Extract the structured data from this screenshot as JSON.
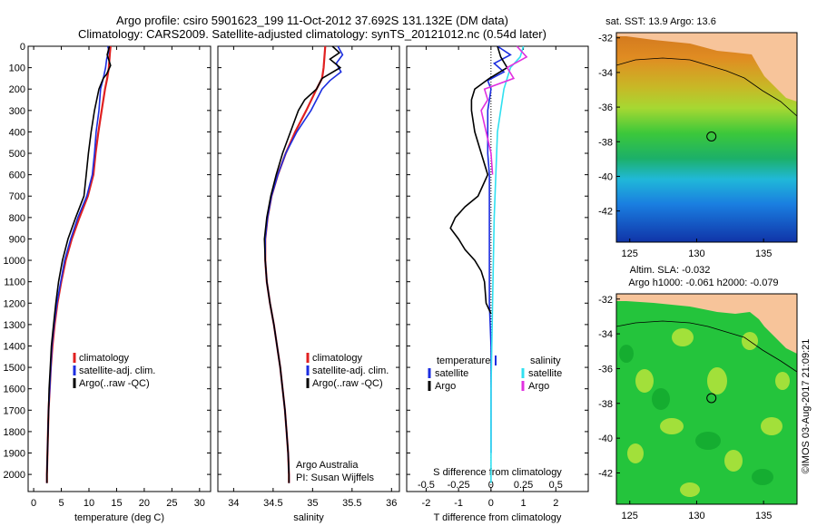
{
  "header": {
    "line1": "Argo profile: csiro 5901623_199 11-Oct-2012 37.692S 131.132E (DM data)",
    "line2": "Climatology: CARS2009. Satellite-adjusted climatology: synTS_20121012.nc (0.54d later)"
  },
  "colors": {
    "climatology": "#e02020",
    "satellite": "#1c2ee0",
    "argo": "#000000",
    "sal_satellite": "#30e0f0",
    "sal_argo": "#e030e0",
    "land": "#f7c49a"
  },
  "depth_axis": {
    "ylim": [
      0,
      2080
    ],
    "ticks": [
      0,
      100,
      200,
      300,
      400,
      500,
      600,
      700,
      800,
      900,
      1000,
      1100,
      1200,
      1300,
      1400,
      1500,
      1600,
      1700,
      1800,
      1900,
      2000
    ]
  },
  "chart_data": [
    {
      "type": "line",
      "panel": "temperature",
      "xlabel": "temperature (deg C)",
      "xlim": [
        -1,
        32
      ],
      "xticks": [
        0,
        5,
        10,
        15,
        20,
        25,
        30
      ],
      "legend": [
        "climatology",
        "satellite-adj. clim.",
        "Argo(..raw -QC)"
      ],
      "legend_placement": "center",
      "series": [
        {
          "name": "climatology",
          "color_key": "climatology",
          "depth": [
            0,
            30,
            100,
            150,
            200,
            300,
            400,
            500,
            600,
            700,
            800,
            900,
            1000,
            1100,
            1200,
            1300,
            1400,
            1500,
            1600,
            1700,
            1800,
            1900,
            2000,
            2040
          ],
          "values": [
            13.9,
            13.8,
            13.6,
            13.3,
            12.9,
            12.3,
            11.7,
            11.2,
            10.8,
            9.8,
            8.3,
            6.9,
            5.8,
            5.0,
            4.3,
            3.8,
            3.4,
            3.1,
            2.9,
            2.7,
            2.6,
            2.5,
            2.4,
            2.4
          ]
        },
        {
          "name": "satellite-adj. clim.",
          "color_key": "satellite",
          "depth": [
            0,
            20,
            60,
            100,
            150,
            200,
            300,
            400,
            500,
            600,
            700,
            800,
            900,
            1000,
            1100,
            1200,
            1300,
            1400,
            1500,
            1600,
            1700,
            1800,
            1900,
            2000,
            2040
          ],
          "values": [
            13.4,
            13.6,
            13.2,
            13.0,
            12.6,
            12.1,
            11.8,
            11.3,
            11.0,
            10.6,
            9.6,
            8.0,
            6.7,
            5.6,
            4.9,
            4.2,
            3.7,
            3.3,
            3.1,
            2.9,
            2.7,
            2.6,
            2.5,
            2.4,
            2.4
          ]
        },
        {
          "name": "Argo(..raw -QC)",
          "color_key": "argo",
          "depth": [
            0,
            40,
            90,
            130,
            150,
            200,
            300,
            400,
            500,
            600,
            700,
            800,
            900,
            1000,
            1100,
            1200,
            1300,
            1400,
            1500,
            1600,
            1700,
            1800,
            1900,
            2000,
            2040
          ],
          "values": [
            13.7,
            13.3,
            13.9,
            13.2,
            12.6,
            11.8,
            11.0,
            10.4,
            9.9,
            9.5,
            9.1,
            7.6,
            6.2,
            5.2,
            4.5,
            4.0,
            3.6,
            3.2,
            3.0,
            2.8,
            2.7,
            2.6,
            2.5,
            2.4,
            2.4
          ]
        }
      ]
    },
    {
      "type": "line",
      "panel": "salinity",
      "xlabel": "salinity",
      "xlim": [
        33.8,
        36.1
      ],
      "xticks": [
        34,
        34.5,
        35,
        35.5,
        36
      ],
      "legend": [
        "climatology",
        "satellite-adj. clim.",
        "Argo(..raw -QC)"
      ],
      "legend_placement": "lower-right",
      "annotation": [
        "Argo Australia",
        "PI: Susan Wijffels"
      ],
      "series": [
        {
          "name": "climatology",
          "color_key": "climatology",
          "depth": [
            0,
            50,
            100,
            150,
            200,
            300,
            400,
            500,
            600,
            700,
            800,
            900,
            1000,
            1100,
            1200,
            1300,
            1400,
            1500,
            1600,
            1700,
            1800,
            1900,
            2000,
            2040
          ],
          "values": [
            35.16,
            35.15,
            35.14,
            35.12,
            35.05,
            34.92,
            34.78,
            34.66,
            34.56,
            34.48,
            34.43,
            34.4,
            34.4,
            34.42,
            34.46,
            34.51,
            34.55,
            34.59,
            34.62,
            34.65,
            34.67,
            34.69,
            34.7,
            34.7
          ]
        },
        {
          "name": "satellite-adj. clim.",
          "color_key": "satellite",
          "depth": [
            0,
            40,
            80,
            120,
            160,
            200,
            300,
            400,
            500,
            600,
            700,
            800,
            900,
            1000,
            1100,
            1200,
            1300,
            1400,
            1500,
            1600,
            1700,
            1800,
            1900,
            2000,
            2040
          ],
          "values": [
            35.32,
            35.38,
            35.3,
            35.36,
            35.22,
            35.12,
            34.98,
            34.8,
            34.66,
            34.56,
            34.48,
            34.43,
            34.4,
            34.4,
            34.42,
            34.46,
            34.51,
            34.55,
            34.59,
            34.62,
            34.65,
            34.67,
            34.69,
            34.7,
            34.7
          ]
        },
        {
          "name": "Argo(..raw -QC)",
          "color_key": "argo",
          "depth": [
            0,
            30,
            60,
            100,
            150,
            200,
            250,
            300,
            400,
            500,
            600,
            700,
            800,
            900,
            1000,
            1100,
            1200,
            1300,
            1400,
            1500,
            1600,
            1700,
            1800,
            1900,
            2000,
            2040
          ],
          "values": [
            35.25,
            35.34,
            35.22,
            35.35,
            35.12,
            35.05,
            34.9,
            34.82,
            34.72,
            34.62,
            34.54,
            34.47,
            34.42,
            34.39,
            34.4,
            34.42,
            34.46,
            34.51,
            34.55,
            34.59,
            34.62,
            34.65,
            34.67,
            34.69,
            34.7,
            34.7
          ]
        }
      ]
    },
    {
      "type": "line",
      "panel": "difference",
      "xlabel": "T difference from climatology",
      "xlabel_top": "S difference from climatology",
      "xlim": [
        -2.6,
        3.0
      ],
      "xticks": [
        -2,
        -1,
        0,
        1,
        2
      ],
      "xticks_S": [
        -0.5,
        -0.25,
        0,
        0.25,
        0.5
      ],
      "legend": {
        "title_left": "temperature",
        "title_right": "salinity",
        "items": [
          "satellite",
          "Argo"
        ]
      },
      "series": [
        {
          "name": "temperature satellite",
          "color_key": "satellite",
          "depth": [
            0,
            40,
            80,
            120,
            160,
            200,
            300,
            400,
            500,
            600,
            800,
            1000,
            1200,
            1400,
            1600,
            1800,
            1900
          ],
          "values": [
            0.2,
            0.6,
            0.1,
            0.4,
            -0.1,
            0.0,
            -0.1,
            -0.1,
            -0.1,
            -0.05,
            -0.05,
            -0.05,
            -0.05,
            0.0,
            0.0,
            0.0,
            0.0
          ]
        },
        {
          "name": "temperature Argo",
          "color_key": "argo",
          "depth": [
            0,
            50,
            100,
            150,
            200,
            250,
            300,
            400,
            500,
            600,
            700,
            750,
            800,
            850,
            900,
            950,
            1000,
            1050,
            1100,
            1200,
            1250
          ],
          "values": [
            0.2,
            0.3,
            0.5,
            -0.05,
            -0.5,
            -0.6,
            -0.6,
            -0.5,
            -0.3,
            -0.1,
            -0.4,
            -0.8,
            -1.1,
            -1.25,
            -1.0,
            -0.8,
            -0.5,
            -0.3,
            -0.2,
            -0.15,
            0.0
          ]
        },
        {
          "name": "salinity satellite",
          "color_key": "sal_satellite",
          "depth": [
            0,
            50,
            100,
            200,
            400,
            800,
            1200,
            1600,
            2000,
            2040
          ],
          "values": [
            1.0,
            0.9,
            0.6,
            0.4,
            0.2,
            0.1,
            0.05,
            0.0,
            0.0,
            0.0
          ]
        },
        {
          "name": "salinity Argo",
          "color_key": "sal_argo",
          "depth": [
            0,
            50,
            100,
            150,
            200,
            250,
            300,
            400,
            500,
            600
          ],
          "values": [
            0.8,
            1.1,
            0.5,
            0.7,
            -0.2,
            -0.1,
            -0.3,
            -0.15,
            0.0,
            0.05
          ]
        }
      ]
    }
  ],
  "maps": [
    {
      "name": "sst",
      "title": "sat. SST: 13.9 Argo: 13.6",
      "xticks": [
        125,
        130,
        135
      ],
      "yticks": [
        -32,
        -34,
        -36,
        -38,
        -40,
        -42
      ],
      "xlim": [
        124,
        137.5
      ],
      "ylim": [
        -43.8,
        -31.7
      ],
      "marker": {
        "lon": 131.1,
        "lat": -37.7
      }
    },
    {
      "name": "sla",
      "title": "Altim. SLA: -0.032",
      "subtitle": "Argo h1000: -0.061 h2000: -0.079",
      "xticks": [
        125,
        130,
        135
      ],
      "yticks": [
        -32,
        -34,
        -36,
        -38,
        -40,
        -42
      ],
      "xlim": [
        124,
        137.5
      ],
      "ylim": [
        -43.8,
        -31.7
      ],
      "marker": {
        "lon": 131.1,
        "lat": -37.7
      }
    }
  ],
  "credit": "©IMOS 03-Aug-2017 21:09:21"
}
